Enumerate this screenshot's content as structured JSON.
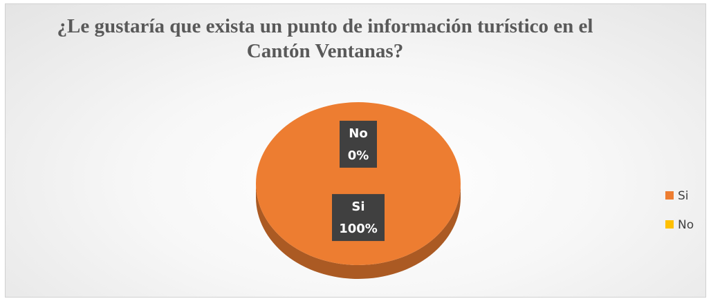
{
  "chart_data": {
    "type": "pie",
    "title": "¿Le gustaría que exista un punto de información turístico en el Cantón Ventanas?",
    "categories": [
      "Si",
      "No"
    ],
    "values": [
      100,
      0
    ],
    "value_labels": [
      "100%",
      "0%"
    ],
    "colors": [
      "#ed7d31",
      "#ffc000"
    ],
    "legend": "right"
  }
}
